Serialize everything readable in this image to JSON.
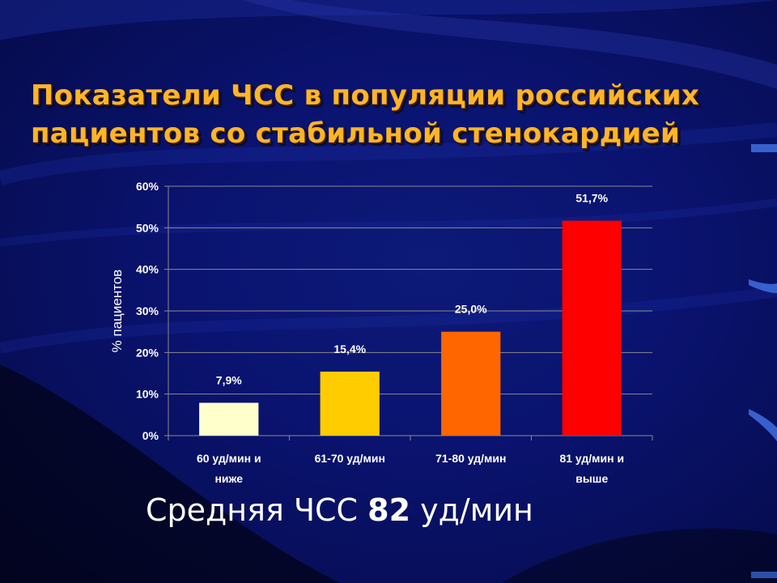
{
  "slide": {
    "title_line1": "Показатели ЧСС в популяции российских",
    "title_line2": "пациентов со стабильной стенокардией",
    "summary_prefix": "Средняя ЧСС ",
    "summary_value": "82",
    "summary_suffix": " уд/мин",
    "title_color": "#ffb526"
  },
  "chart_data": {
    "type": "bar",
    "categories": [
      [
        "60 уд/мин и",
        "ниже"
      ],
      [
        "61-70 уд/мин"
      ],
      [
        "71-80 уд/мин"
      ],
      [
        "81 уд/мин и",
        "выше"
      ]
    ],
    "values": [
      7.9,
      15.4,
      25.0,
      51.7
    ],
    "value_labels": [
      "7,9%",
      "15,4%",
      "25,0%",
      "51,7%"
    ],
    "colors": [
      "#ffffcc",
      "#ffcc00",
      "#ff6600",
      "#ff0000"
    ],
    "ylabel": "% пациентов",
    "xlabel": "",
    "ylim": [
      0,
      60
    ],
    "yticks": [
      0,
      10,
      20,
      30,
      40,
      50,
      60
    ],
    "ytick_labels": [
      "0%",
      "10%",
      "20%",
      "30%",
      "40%",
      "50%",
      "60%"
    ],
    "grid": true,
    "legend": "none"
  }
}
